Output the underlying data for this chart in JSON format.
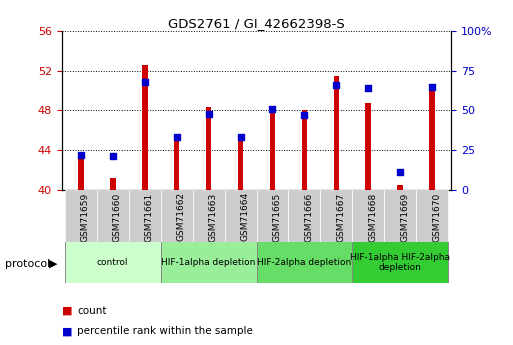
{
  "title": "GDS2761 / GI_42662398-S",
  "samples": [
    "GSM71659",
    "GSM71660",
    "GSM71661",
    "GSM71662",
    "GSM71663",
    "GSM71664",
    "GSM71665",
    "GSM71666",
    "GSM71667",
    "GSM71668",
    "GSM71669",
    "GSM71670"
  ],
  "count_values": [
    43.3,
    41.2,
    52.6,
    45.2,
    48.3,
    45.3,
    48.1,
    48.0,
    51.5,
    48.7,
    40.5,
    50.6
  ],
  "percentile_values": [
    22,
    21,
    68,
    33,
    48,
    33,
    51,
    47,
    66,
    64,
    11,
    65
  ],
  "ylim_left": [
    40,
    56
  ],
  "ylim_right": [
    0,
    100
  ],
  "yticks_left": [
    40,
    44,
    48,
    52,
    56
  ],
  "yticks_right": [
    0,
    25,
    50,
    75,
    100
  ],
  "bar_color": "#cc0000",
  "dot_color": "#0000cc",
  "groups": [
    {
      "label": "control",
      "samples": [
        0,
        1,
        2
      ],
      "color": "#ccffcc"
    },
    {
      "label": "HIF-1alpha depletion",
      "samples": [
        3,
        4,
        5
      ],
      "color": "#99ee99"
    },
    {
      "label": "HIF-2alpha depletion",
      "samples": [
        6,
        7,
        8
      ],
      "color": "#66dd66"
    },
    {
      "label": "HIF-1alpha HIF-2alpha\ndepletion",
      "samples": [
        9,
        10,
        11
      ],
      "color": "#33cc33"
    }
  ],
  "legend_items": [
    {
      "label": "count",
      "color": "#cc0000"
    },
    {
      "label": "percentile rank within the sample",
      "color": "#0000cc"
    }
  ],
  "xlabel_protocol": "protocol",
  "left_axis_color": "#cc0000",
  "right_axis_color": "#0000cc",
  "bar_width": 0.18,
  "tick_bg_color": "#cccccc"
}
